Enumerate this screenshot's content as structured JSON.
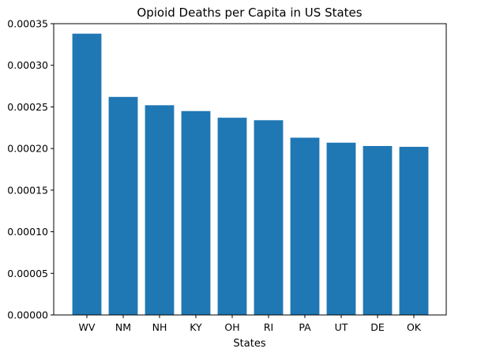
{
  "chart_data": {
    "type": "bar",
    "title": "Opioid Deaths per Capita in US States",
    "xlabel": "States",
    "ylabel": "",
    "categories": [
      "WV",
      "NM",
      "NH",
      "KY",
      "OH",
      "RI",
      "PA",
      "UT",
      "DE",
      "OK"
    ],
    "values": [
      0.000338,
      0.000262,
      0.000252,
      0.000245,
      0.000237,
      0.000234,
      0.000213,
      0.000207,
      0.000203,
      0.000202
    ],
    "ylim": [
      0,
      0.00035
    ],
    "yticks": [
      "0.00000",
      "0.00005",
      "0.00010",
      "0.00015",
      "0.00020",
      "0.00025",
      "0.00030",
      "0.00035"
    ],
    "ytick_values": [
      0,
      5e-05,
      0.0001,
      0.00015,
      0.0002,
      0.00025,
      0.0003,
      0.00035
    ],
    "bar_color": "#1f77b4",
    "grid": false,
    "legend": "none"
  }
}
